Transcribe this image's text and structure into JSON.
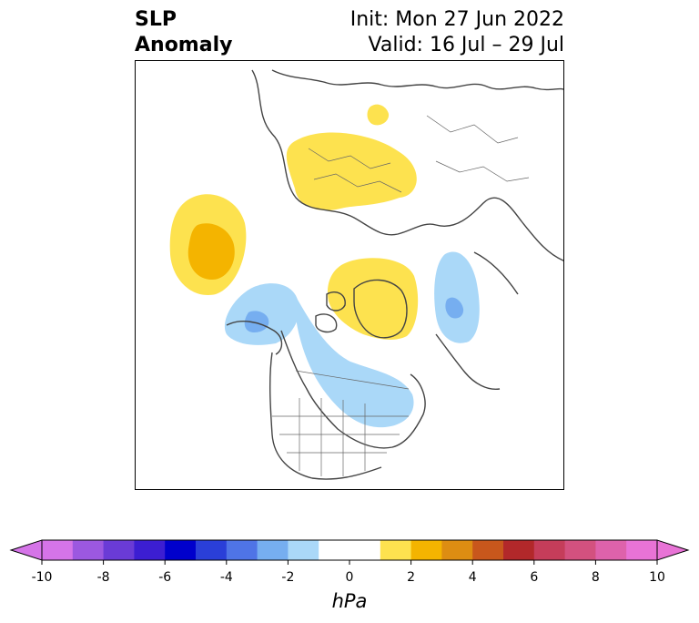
{
  "title": {
    "left_line1": "SLP",
    "left_line2": "Anomaly",
    "init": "Init: Mon 27 Jun 2022",
    "valid": "Valid: 16 Jul – 29 Jul"
  },
  "map": {
    "projection": "polar-stereographic-north",
    "region": "Northern Hemisphere",
    "anomalies": [
      {
        "name": "europe-positive",
        "sign": "positive",
        "max_level_hpa": 1
      },
      {
        "name": "scandinavia-small-positive",
        "sign": "positive",
        "max_level_hpa": 1
      },
      {
        "name": "north-pacific-positive",
        "sign": "positive",
        "max_level_hpa": 2
      },
      {
        "name": "greenland-positive",
        "sign": "positive",
        "max_level_hpa": 2
      },
      {
        "name": "alaska-negative",
        "sign": "negative",
        "min_level_hpa": -2
      },
      {
        "name": "canada-negative",
        "sign": "negative",
        "min_level_hpa": -1
      },
      {
        "name": "siberia-negative",
        "sign": "negative",
        "min_level_hpa": -2
      }
    ]
  },
  "colorbar": {
    "unit": "hPa",
    "min": -10,
    "max": 10,
    "extend": "both",
    "tick_labels": [
      "-10",
      "-8",
      "-6",
      "-4",
      "-2",
      "0",
      "2",
      "4",
      "6",
      "8",
      "10"
    ],
    "bin_colors": [
      "#d574e8",
      "#9c58e0",
      "#6a3bd6",
      "#3c1ed2",
      "#0000cc",
      "#2a3fd8",
      "#4f74e6",
      "#76aef0",
      "#aad8f8",
      "#ffffff",
      "#ffffff",
      "#fde24f",
      "#f4b400",
      "#dd8d12",
      "#c8571c",
      "#b2282a",
      "#c53d5a",
      "#d3517f",
      "#de62ab",
      "#e873d6"
    ],
    "low_extend_color": "#d574e8",
    "high_extend_color": "#e873d6"
  }
}
